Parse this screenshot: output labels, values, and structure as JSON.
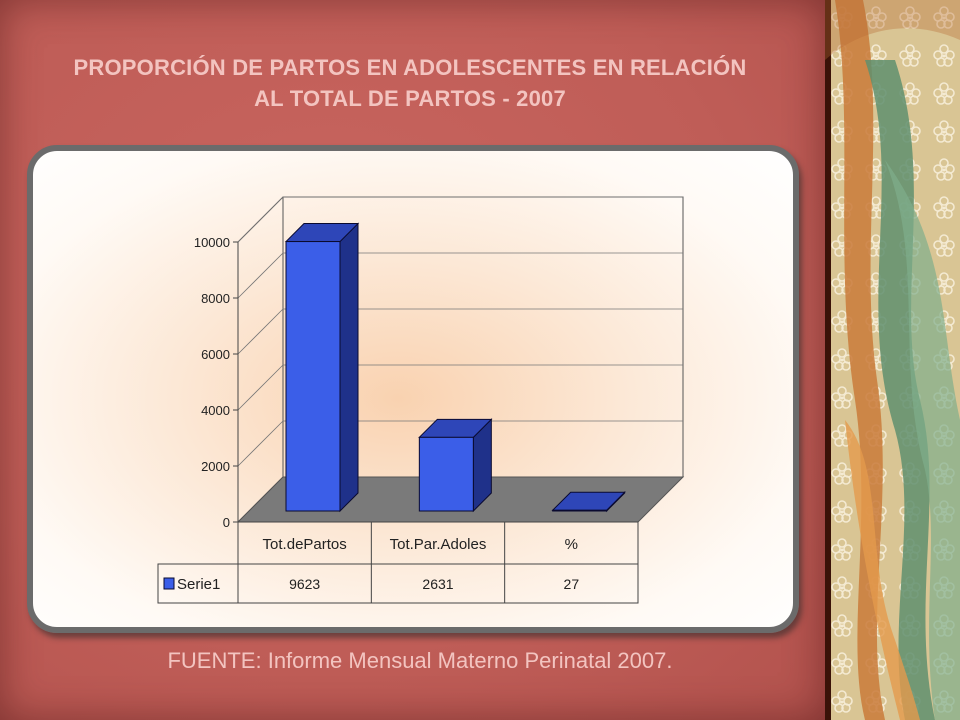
{
  "title": "PROPORCIÓN DE PARTOS EN ADOLESCENTES EN RELACIÓN AL TOTAL DE PARTOS - 2007",
  "source": "FUENTE: Informe Mensual Materno Perinatal 2007.",
  "colors": {
    "bar_front": "#3b5ee8",
    "bar_top": "#2e46b8",
    "bar_side": "#1f318a",
    "floor": "#7a7a7a"
  },
  "chart_data": {
    "type": "bar",
    "style": "3d-column",
    "categories": [
      "Tot.dePartos",
      "Tot.Par.Adoles",
      "%"
    ],
    "series": [
      {
        "name": "Serie1",
        "values": [
          9623,
          2631,
          27
        ]
      }
    ],
    "yticks": [
      0,
      2000,
      4000,
      6000,
      8000,
      10000
    ],
    "ylim": [
      0,
      10000
    ],
    "data_table": {
      "row_label": "Serie1",
      "cells": [
        "9623",
        "2631",
        "27"
      ]
    },
    "legend": "in data table",
    "grid": true
  }
}
